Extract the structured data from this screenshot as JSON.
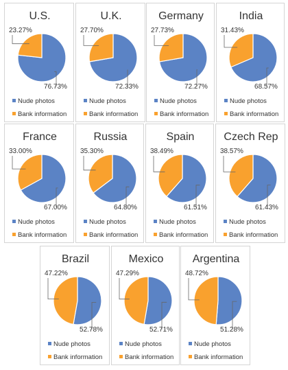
{
  "colors": {
    "nude_photos": "#5b83c5",
    "bank_information": "#f9a12e",
    "leader_line": "#666666",
    "title_text": "#333333",
    "label_text": "#333333"
  },
  "chart_data": [
    {
      "type": "pie",
      "title": "U.S.",
      "categories": [
        "Nude photos",
        "Bank information"
      ],
      "values": [
        76.73,
        23.27
      ],
      "labels": [
        "76.73%",
        "23.27%"
      ],
      "legend": [
        "Nude photos",
        "Bank information"
      ]
    },
    {
      "type": "pie",
      "title": "U.K.",
      "categories": [
        "Nude photos",
        "Bank information"
      ],
      "values": [
        72.33,
        27.7
      ],
      "labels": [
        "72.33%",
        "27.70%"
      ],
      "legend": [
        "Nude photos",
        "Bank information"
      ]
    },
    {
      "type": "pie",
      "title": "Germany",
      "categories": [
        "Nude photos",
        "Bank information"
      ],
      "values": [
        72.27,
        27.73
      ],
      "labels": [
        "72.27%",
        "27.73%"
      ],
      "legend": [
        "Nude photos",
        "Bank information"
      ]
    },
    {
      "type": "pie",
      "title": "India",
      "categories": [
        "Nude photos",
        "Bank information"
      ],
      "values": [
        68.57,
        31.43
      ],
      "labels": [
        "68.57%",
        "31.43%"
      ],
      "legend": [
        "Nude photos",
        "Bank information"
      ]
    },
    {
      "type": "pie",
      "title": "France",
      "categories": [
        "Nude photos",
        "Bank information"
      ],
      "values": [
        67.0,
        33.0
      ],
      "labels": [
        "67.00%",
        "33.00%"
      ],
      "legend": [
        "Nude photos",
        "Bank information"
      ]
    },
    {
      "type": "pie",
      "title": "Russia",
      "categories": [
        "Nude photos",
        "Bank information"
      ],
      "values": [
        64.8,
        35.3
      ],
      "labels": [
        "64.80%",
        "35.30%"
      ],
      "legend": [
        "Nude photos",
        "Bank information"
      ]
    },
    {
      "type": "pie",
      "title": "Spain",
      "categories": [
        "Nude photos",
        "Bank information"
      ],
      "values": [
        61.51,
        38.49
      ],
      "labels": [
        "61.51%",
        "38.49%"
      ],
      "legend": [
        "Nude photos",
        "Bank information"
      ]
    },
    {
      "type": "pie",
      "title": "Czech Rep",
      "categories": [
        "Nude photos",
        "Bank information"
      ],
      "values": [
        61.43,
        38.57
      ],
      "labels": [
        "61.43%",
        "38.57%"
      ],
      "legend": [
        "Nude photos",
        "Bank information"
      ]
    },
    {
      "type": "pie",
      "title": "Brazil",
      "categories": [
        "Nude photos",
        "Bank information"
      ],
      "values": [
        52.78,
        47.22
      ],
      "labels": [
        "52.78%",
        "47.22%"
      ],
      "legend": [
        "Nude photos",
        "Bank information"
      ]
    },
    {
      "type": "pie",
      "title": "Mexico",
      "categories": [
        "Nude photos",
        "Bank information"
      ],
      "values": [
        52.71,
        47.29
      ],
      "labels": [
        "52.71%",
        "47.29%"
      ],
      "legend": [
        "Nude photos",
        "Bank information"
      ]
    },
    {
      "type": "pie",
      "title": "Argentina",
      "categories": [
        "Nude photos",
        "Bank information"
      ],
      "values": [
        51.28,
        48.72
      ],
      "labels": [
        "51.28%",
        "48.72%"
      ],
      "legend": [
        "Nude photos",
        "Bank information"
      ]
    }
  ]
}
